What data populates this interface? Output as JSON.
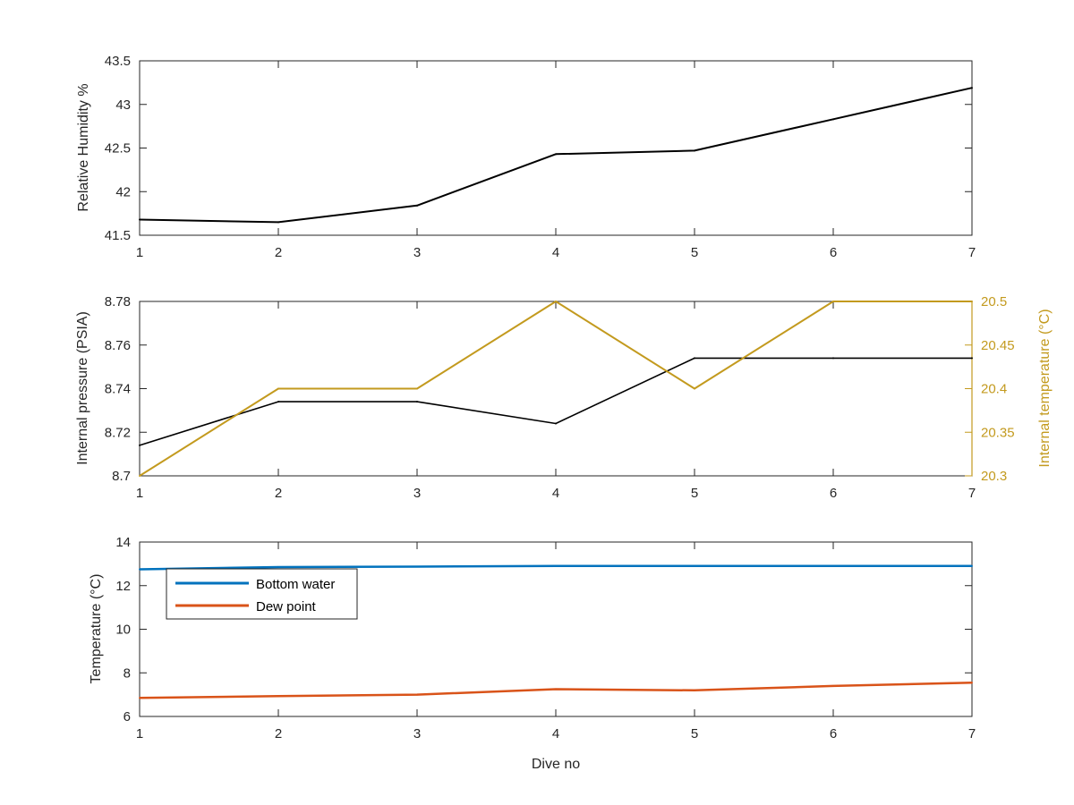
{
  "colors": {
    "black": "#000000",
    "gold": "#C39A1E",
    "blue": "#0072BD",
    "orange": "#D95319",
    "axis": "#262626"
  },
  "chart_data": [
    {
      "type": "line",
      "xlabel": "",
      "ylabel": "Relative Humidity %",
      "xlim": [
        1,
        7
      ],
      "ylim": [
        41.5,
        43.5
      ],
      "x_ticks": [
        "1",
        "2",
        "3",
        "4",
        "5",
        "6",
        "7"
      ],
      "y_ticks": [
        "41.5",
        "42",
        "42.5",
        "43",
        "43.5"
      ],
      "x": [
        1,
        2,
        3,
        4,
        5,
        6,
        7
      ],
      "series": [
        {
          "values": [
            41.68,
            41.65,
            41.84,
            42.43,
            42.47,
            42.83,
            43.19
          ]
        }
      ],
      "grid": false
    },
    {
      "type": "line",
      "xlabel": "",
      "ylabel": "Internal pressure (PSIA)",
      "ylabel_right": "Internal temperature (°C)",
      "xlim": [
        1,
        7
      ],
      "ylim": [
        8.7,
        8.78
      ],
      "ylim_right": [
        20.3,
        20.5
      ],
      "x_ticks": [
        "1",
        "2",
        "3",
        "4",
        "5",
        "6",
        "7"
      ],
      "y_ticks": [
        "8.7",
        "8.72",
        "8.74",
        "8.76",
        "8.78"
      ],
      "y_ticks_right": [
        "20.3",
        "20.35",
        "20.4",
        "20.45",
        "20.5"
      ],
      "x": [
        1,
        2,
        3,
        4,
        5,
        6,
        7
      ],
      "series": [
        {
          "axis": "left",
          "values": [
            8.714,
            8.734,
            8.734,
            8.724,
            8.754,
            8.754,
            8.754
          ]
        },
        {
          "axis": "right",
          "values": [
            20.3,
            20.4,
            20.4,
            20.5,
            20.4,
            20.5,
            20.5
          ]
        }
      ],
      "grid": false
    },
    {
      "type": "line",
      "xlabel": "Dive no",
      "ylabel": "Temperature (°C)",
      "xlim": [
        1,
        7
      ],
      "ylim": [
        6,
        14
      ],
      "x_ticks": [
        "1",
        "2",
        "3",
        "4",
        "5",
        "6",
        "7"
      ],
      "y_ticks": [
        "6",
        "8",
        "10",
        "12",
        "14"
      ],
      "x": [
        1,
        2,
        3,
        4,
        5,
        6,
        7
      ],
      "series": [
        {
          "name": "Bottom water",
          "values": [
            12.75,
            12.85,
            12.87,
            12.9,
            12.9,
            12.9,
            12.9
          ]
        },
        {
          "name": "Dew point",
          "values": [
            6.85,
            6.93,
            7.0,
            7.25,
            7.2,
            7.4,
            7.55
          ]
        }
      ],
      "legend": "top-left",
      "grid": false
    }
  ]
}
